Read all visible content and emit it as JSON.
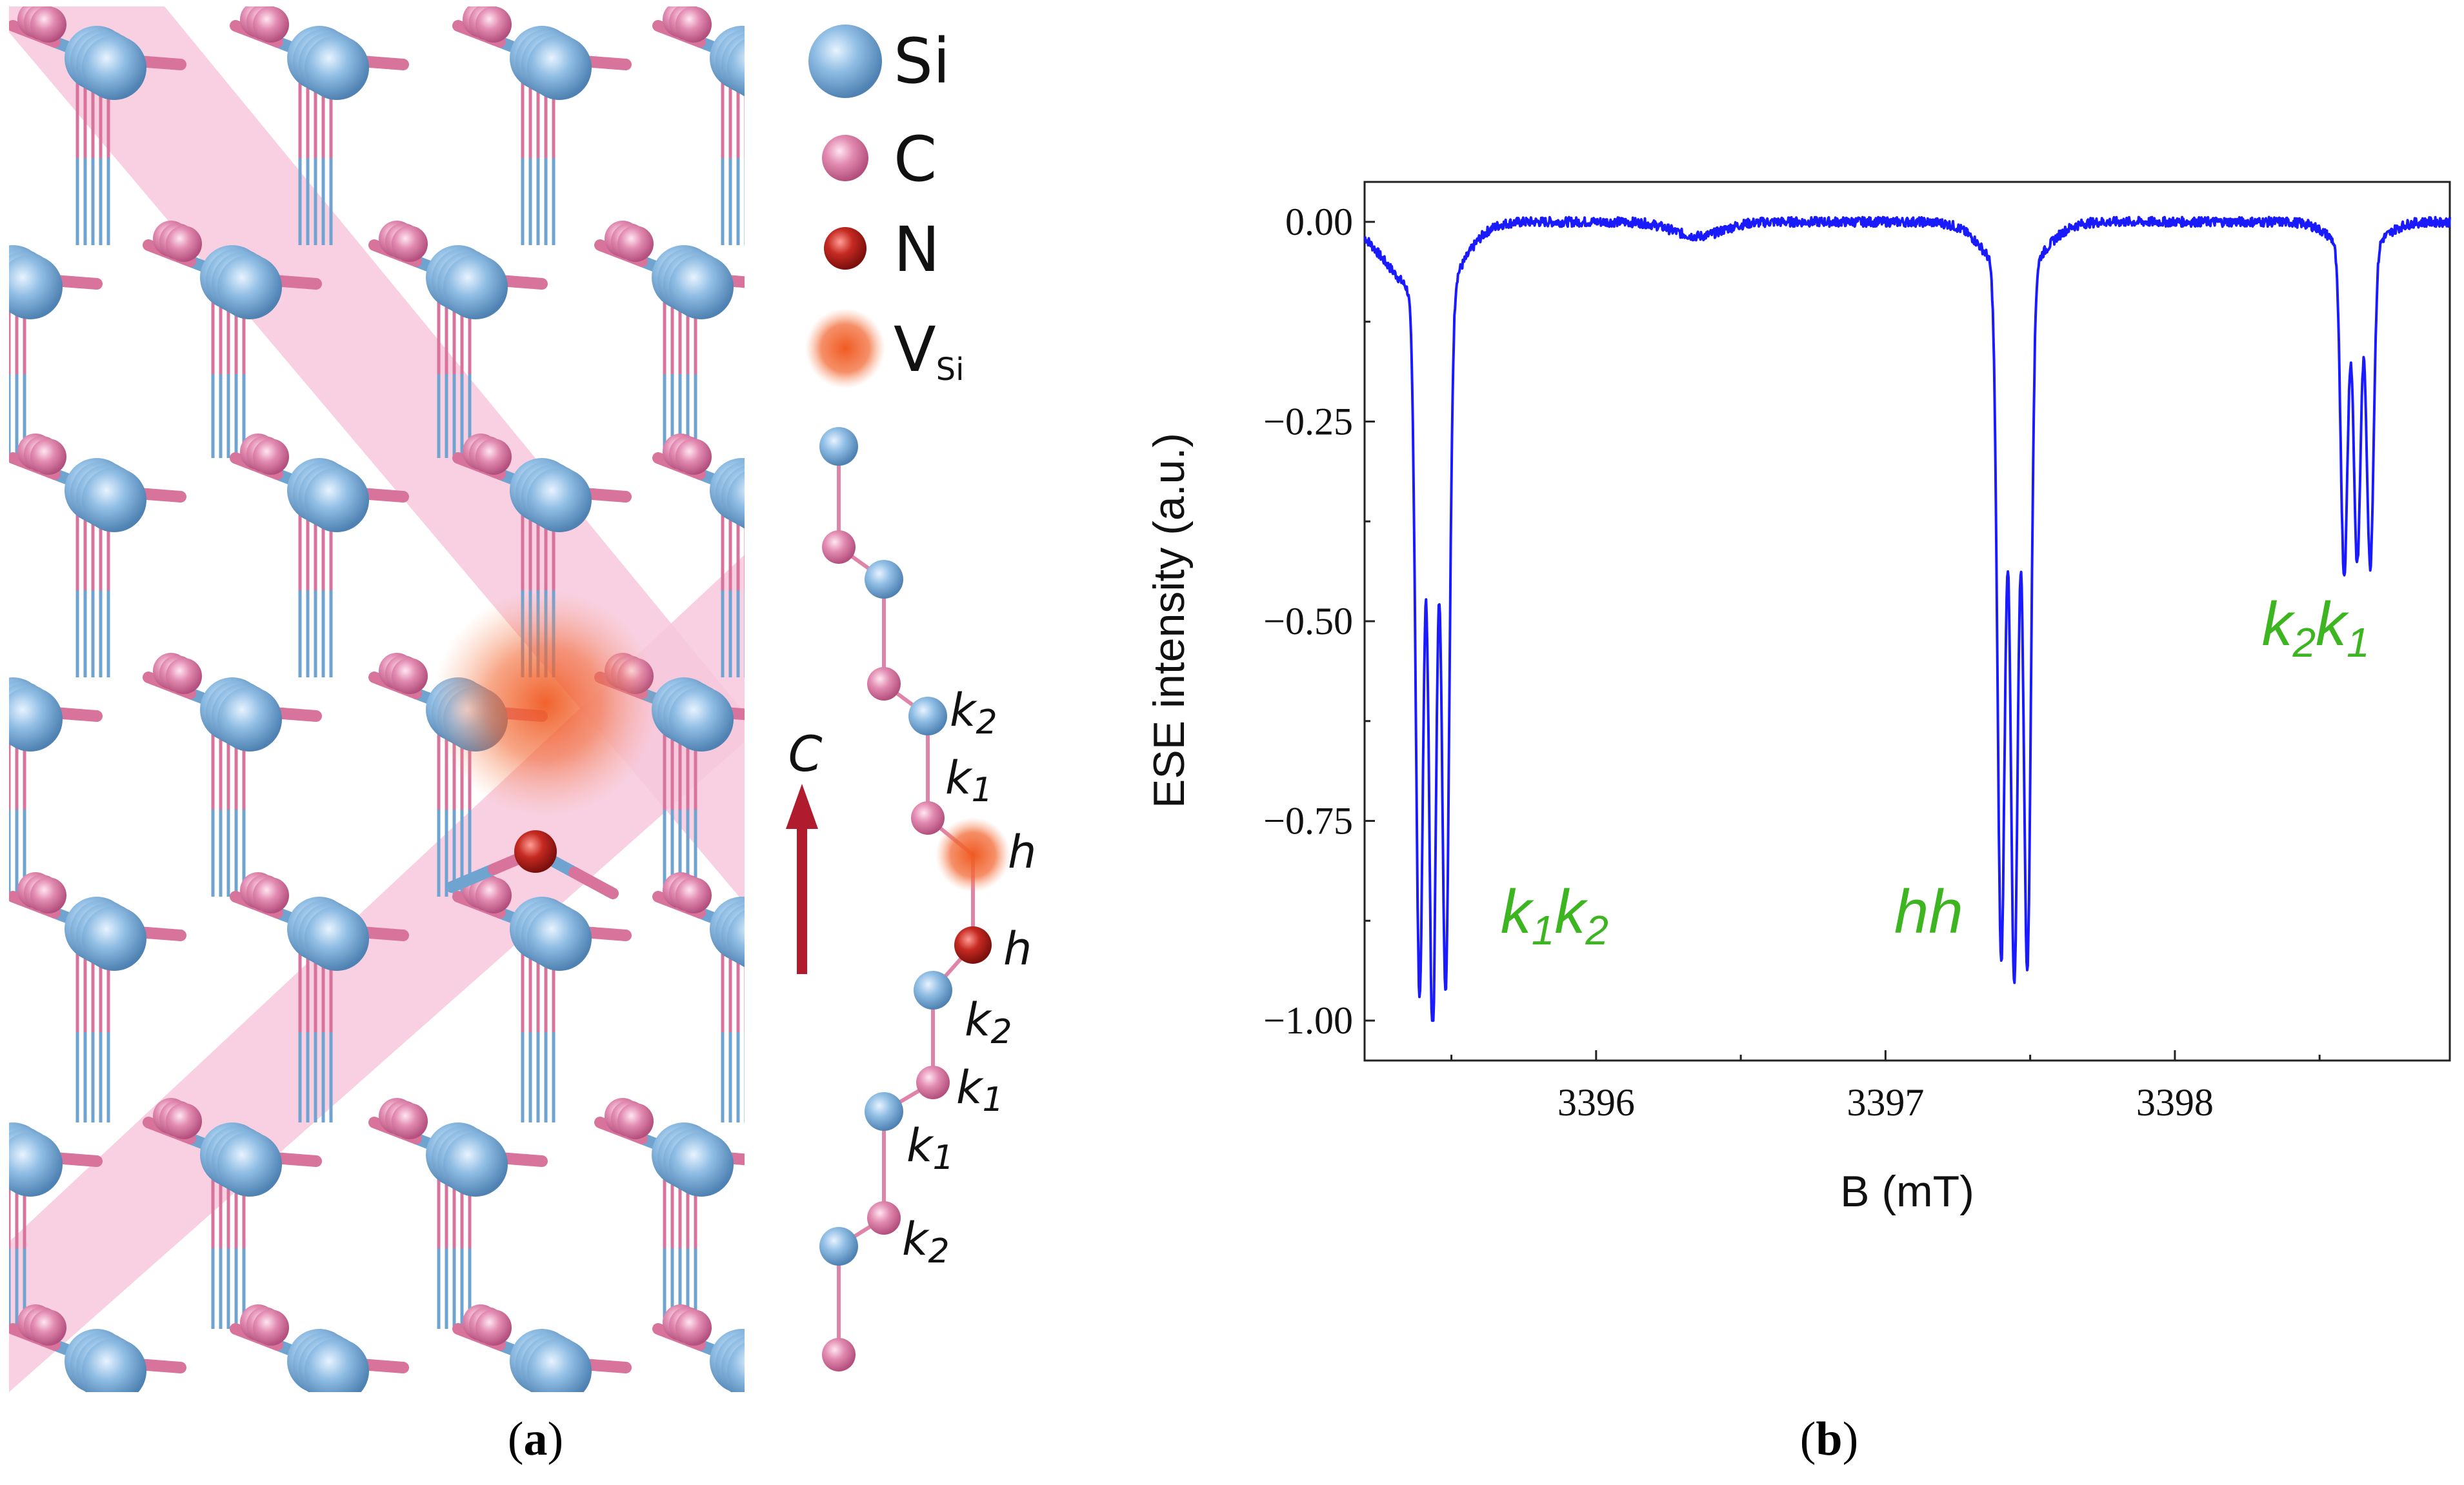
{
  "panels": {
    "a": {
      "label": "(a)"
    },
    "b": {
      "label": "(b)"
    }
  },
  "structure": {
    "legend": [
      {
        "symbol": "Si",
        "sub": "",
        "color": "#6fa3d0"
      },
      {
        "symbol": "C",
        "sub": "",
        "color": "#d8739c"
      },
      {
        "symbol": "N",
        "sub": "",
        "color": "#b0201c"
      },
      {
        "symbol": "V",
        "sub": "Si",
        "color": "#f05a22"
      }
    ],
    "c_axis_label": "C",
    "stacking_sites": [
      {
        "letter": "k",
        "sub": "2"
      },
      {
        "letter": "k",
        "sub": "1"
      },
      {
        "letter": "h",
        "sub": ""
      },
      {
        "letter": "h",
        "sub": ""
      },
      {
        "letter": "k",
        "sub": "2"
      },
      {
        "letter": "k",
        "sub": "1"
      },
      {
        "letter": "k",
        "sub": "1"
      },
      {
        "letter": "k",
        "sub": "2"
      }
    ],
    "colors": {
      "si": "#6fa3d0",
      "c": "#d8739c",
      "n": "#b0201c",
      "vacancy": "#f05a22",
      "band": "#f7c8dc",
      "arrow": "#b01c2e"
    }
  },
  "chart_data": {
    "type": "line",
    "xlabel": "B (mT)",
    "ylabel": "ESE intensity (a.u.)",
    "xlim": [
      3395.2,
      3398.95
    ],
    "ylim": [
      -1.05,
      0.05
    ],
    "xticks": [
      3396,
      3397,
      3398
    ],
    "xtick_labels": [
      "3396",
      "3397",
      "3398"
    ],
    "yticks": [
      0.0,
      -0.25,
      -0.5,
      -0.75,
      -1.0
    ],
    "ytick_labels": [
      "0.00",
      "−0.25",
      "−0.50",
      "−0.75",
      "−1.00"
    ],
    "line_color": "#1a1aff",
    "annotation_color": "#3cb521",
    "peak_groups": [
      {
        "name": "k1k2",
        "label_parts": [
          [
            "k",
            "1"
          ],
          [
            "k",
            "2"
          ]
        ],
        "label_at": [
          3395.67,
          -0.89
        ],
        "dips": [
          [
            3395.39,
            -0.95
          ],
          [
            3395.435,
            -1.0
          ],
          [
            3395.48,
            -0.95
          ]
        ],
        "width": 0.018,
        "envelope_depth": 0.1,
        "envelope_width": 0.13
      },
      {
        "name": "hh",
        "label_parts": [
          [
            "hh",
            ""
          ]
        ],
        "label_at": [
          3397.03,
          -0.89
        ],
        "dips": [
          [
            3397.4,
            -0.92
          ],
          [
            3397.445,
            -0.94
          ],
          [
            3397.49,
            -0.93
          ]
        ],
        "width": 0.018,
        "envelope_depth": 0.07,
        "envelope_width": 0.13
      },
      {
        "name": "k2k1",
        "label_parts": [
          [
            "k",
            "2"
          ],
          [
            "k",
            "1"
          ]
        ],
        "label_at": [
          3398.3,
          -0.53
        ],
        "dips": [
          [
            3398.585,
            -0.44
          ],
          [
            3398.63,
            -0.42
          ],
          [
            3398.675,
            -0.43
          ]
        ],
        "width": 0.017,
        "envelope_depth": 0.04,
        "envelope_width": 0.11
      }
    ],
    "baseline_features": [
      {
        "center": 3396.35,
        "depth": 0.018,
        "width": 0.12
      },
      {
        "center": 3395.28,
        "depth": 0.03,
        "width": 0.1
      }
    ]
  }
}
